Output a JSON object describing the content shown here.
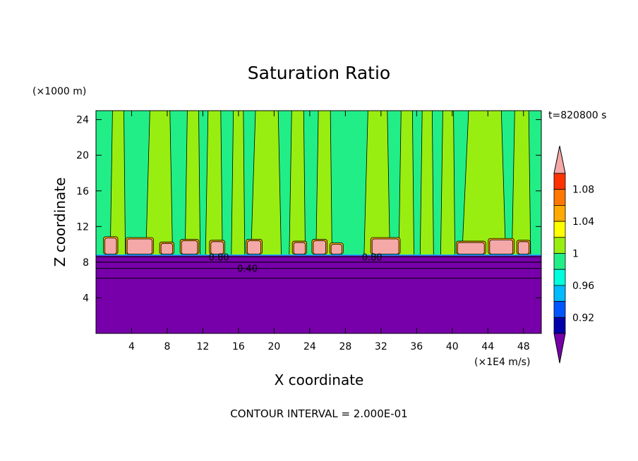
{
  "chart_data": {
    "type": "heatmap",
    "title": "Saturation Ratio",
    "xlabel": "X coordinate",
    "ylabel": "Z coordinate",
    "x_unit": "(×1E4 m/s)",
    "y_unit": "(×1000 m)",
    "time_label": "t=820800 s",
    "footer": "CONTOUR INTERVAL = 2.000E-01",
    "xlim": [
      0,
      50
    ],
    "ylim": [
      0,
      25
    ],
    "xticks": [
      4,
      8,
      12,
      16,
      20,
      24,
      28,
      32,
      36,
      40,
      44,
      48
    ],
    "yticks": [
      4,
      8,
      12,
      16,
      20,
      24
    ],
    "colorbar": {
      "labels": [
        "1.08",
        "1.04",
        "1",
        "0.96",
        "0.92"
      ],
      "label_values": [
        1.08,
        1.04,
        1.0,
        0.96,
        0.92
      ],
      "bins": [
        {
          "lo": 1.1,
          "hi": null,
          "color": "#f4a8a8"
        },
        {
          "lo": 1.08,
          "hi": 1.1,
          "color": "#ff3300"
        },
        {
          "lo": 1.06,
          "hi": 1.08,
          "color": "#ff7700"
        },
        {
          "lo": 1.04,
          "hi": 1.06,
          "color": "#ffaa00"
        },
        {
          "lo": 1.02,
          "hi": 1.04,
          "color": "#ffff00"
        },
        {
          "lo": 1.0,
          "hi": 1.02,
          "color": "#99ee11"
        },
        {
          "lo": 0.98,
          "hi": 1.0,
          "color": "#22ee88"
        },
        {
          "lo": 0.96,
          "hi": 0.98,
          "color": "#00ffdd"
        },
        {
          "lo": 0.94,
          "hi": 0.96,
          "color": "#00bbff"
        },
        {
          "lo": 0.92,
          "hi": 0.94,
          "color": "#0055ff"
        },
        {
          "lo": 0.9,
          "hi": 0.92,
          "color": "#0000aa"
        },
        {
          "lo": null,
          "hi": 0.9,
          "color": "#7700aa"
        }
      ]
    },
    "contour_labels": [
      {
        "text": "0.80",
        "x": 13.8,
        "z": 8.6
      },
      {
        "text": "0.40",
        "x": 17.0,
        "z": 7.3
      },
      {
        "text": "0.80",
        "x": 31.0,
        "z": 8.6
      }
    ],
    "lower_region": {
      "z_top": 8.8,
      "value_below": 0.9,
      "color": "#7700aa"
    },
    "upper_region_color": "#22ee88",
    "columns_color": "#99ee11",
    "columns": [
      {
        "x0": 1.6,
        "x1": 3.3
      },
      {
        "x0": 5.6,
        "x1": 8.6
      },
      {
        "x0": 10.0,
        "x1": 11.7
      },
      {
        "x0": 12.3,
        "x1": 14.2
      },
      {
        "x0": 15.2,
        "x1": 16.7
      },
      {
        "x0": 17.4,
        "x1": 20.8
      },
      {
        "x0": 21.7,
        "x1": 23.5
      },
      {
        "x0": 24.7,
        "x1": 26.5
      },
      {
        "x0": 30.1,
        "x1": 33.0
      },
      {
        "x0": 34.0,
        "x1": 35.7
      },
      {
        "x0": 36.4,
        "x1": 37.9
      },
      {
        "x0": 38.7,
        "x1": 40.3
      },
      {
        "x0": 41.1,
        "x1": 46.0
      },
      {
        "x0": 46.7,
        "x1": 48.8
      }
    ],
    "cells": [
      {
        "x0": 1.0,
        "x1": 2.3,
        "z0": 8.9,
        "z1": 10.7
      },
      {
        "x0": 3.5,
        "x1": 6.3,
        "z0": 8.9,
        "z1": 10.6
      },
      {
        "x0": 7.3,
        "x1": 8.6,
        "z0": 8.9,
        "z1": 10.1
      },
      {
        "x0": 9.6,
        "x1": 11.4,
        "z0": 8.9,
        "z1": 10.4
      },
      {
        "x0": 12.9,
        "x1": 14.3,
        "z0": 8.9,
        "z1": 10.3
      },
      {
        "x0": 17.0,
        "x1": 18.5,
        "z0": 8.9,
        "z1": 10.4
      },
      {
        "x0": 22.2,
        "x1": 23.5,
        "z0": 8.9,
        "z1": 10.2
      },
      {
        "x0": 24.4,
        "x1": 25.8,
        "z0": 8.9,
        "z1": 10.4
      },
      {
        "x0": 26.4,
        "x1": 27.6,
        "z0": 8.9,
        "z1": 10.0
      },
      {
        "x0": 31.0,
        "x1": 34.0,
        "z0": 8.9,
        "z1": 10.6
      },
      {
        "x0": 40.6,
        "x1": 43.6,
        "z0": 8.9,
        "z1": 10.2
      },
      {
        "x0": 44.2,
        "x1": 46.8,
        "z0": 8.9,
        "z1": 10.5
      },
      {
        "x0": 47.4,
        "x1": 48.6,
        "z0": 8.9,
        "z1": 10.3
      }
    ]
  }
}
